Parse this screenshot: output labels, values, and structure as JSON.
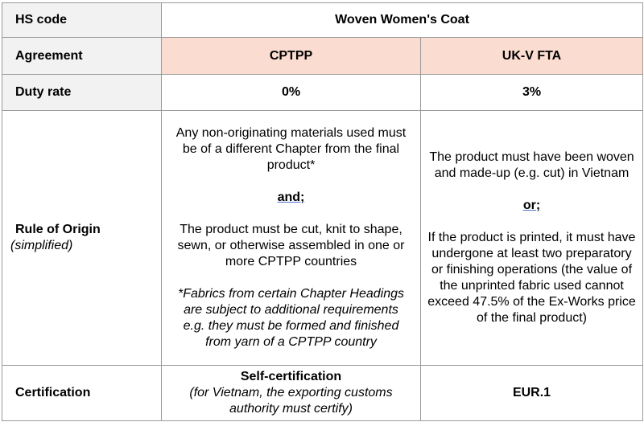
{
  "table": {
    "hs_code": {
      "label": "HS code",
      "value": "Woven Women's Coat"
    },
    "agreement": {
      "label": "Agreement",
      "cptpp": "CPTPP",
      "ukv": "UK-V FTA"
    },
    "duty_rate": {
      "label": "Duty rate",
      "cptpp": "0%",
      "ukv": "3%"
    },
    "rule_of_origin": {
      "label": "Rule of Origin",
      "sublabel": "(simplified)",
      "cptpp": {
        "p1": "Any non-originating materials used must be of a different Chapter from the final product*",
        "connector": "and;",
        "p2": "The product must be cut, knit to shape, sewn, or otherwise assembled in one or more CPTPP countries",
        "note": "*Fabrics from certain Chapter Headings are subject to additional requirements e.g. they must be formed and finished from yarn of a CPTPP country"
      },
      "ukv": {
        "p1": "The product must have been woven and made-up (e.g. cut) in Vietnam",
        "connector": "or;",
        "p2": "If the product is printed, it must have undergone at least two preparatory or finishing operations (the value of the unprinted fabric used cannot exceed 47.5% of the Ex-Works price of the final product)"
      }
    },
    "certification": {
      "label": "Certification",
      "cptpp_title": "Self-certification",
      "cptpp_note": "(for Vietnam, the exporting customs authority must certify)",
      "ukv": "EUR.1"
    }
  },
  "colors": {
    "header_fill": "#fbdcd0",
    "label_fill": "#f2f2f2",
    "border": "#9a9a9a",
    "underline": "#4a6fd0"
  }
}
